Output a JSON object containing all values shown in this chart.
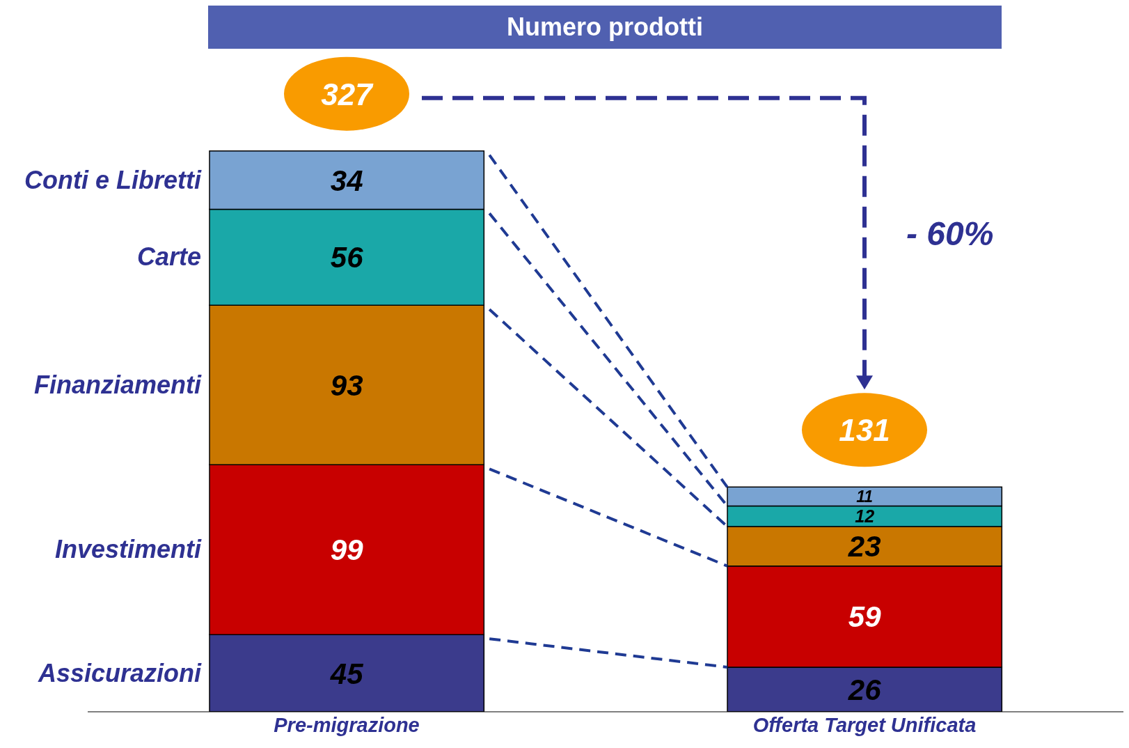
{
  "chart_data": {
    "type": "bar",
    "title": "Numero prodotti",
    "categories": [
      "Pre-migrazione",
      "Offerta Target Unificata"
    ],
    "stacked": true,
    "data_labels": true,
    "series": [
      {
        "name": "Assicurazioni",
        "color": "#3b3b8c",
        "values": [
          45,
          26
        ]
      },
      {
        "name": "Investimenti",
        "color": "#c80000",
        "values": [
          99,
          59
        ]
      },
      {
        "name": "Finanziamenti",
        "color": "#c97700",
        "values": [
          93,
          23
        ]
      },
      {
        "name": "Carte",
        "color": "#1aa8a8",
        "values": [
          56,
          12
        ]
      },
      {
        "name": "Conti e Libretti",
        "color": "#79a3d2",
        "values": [
          34,
          11
        ]
      }
    ],
    "totals": [
      "327",
      "131"
    ],
    "annotations": [
      "- 60%"
    ]
  }
}
